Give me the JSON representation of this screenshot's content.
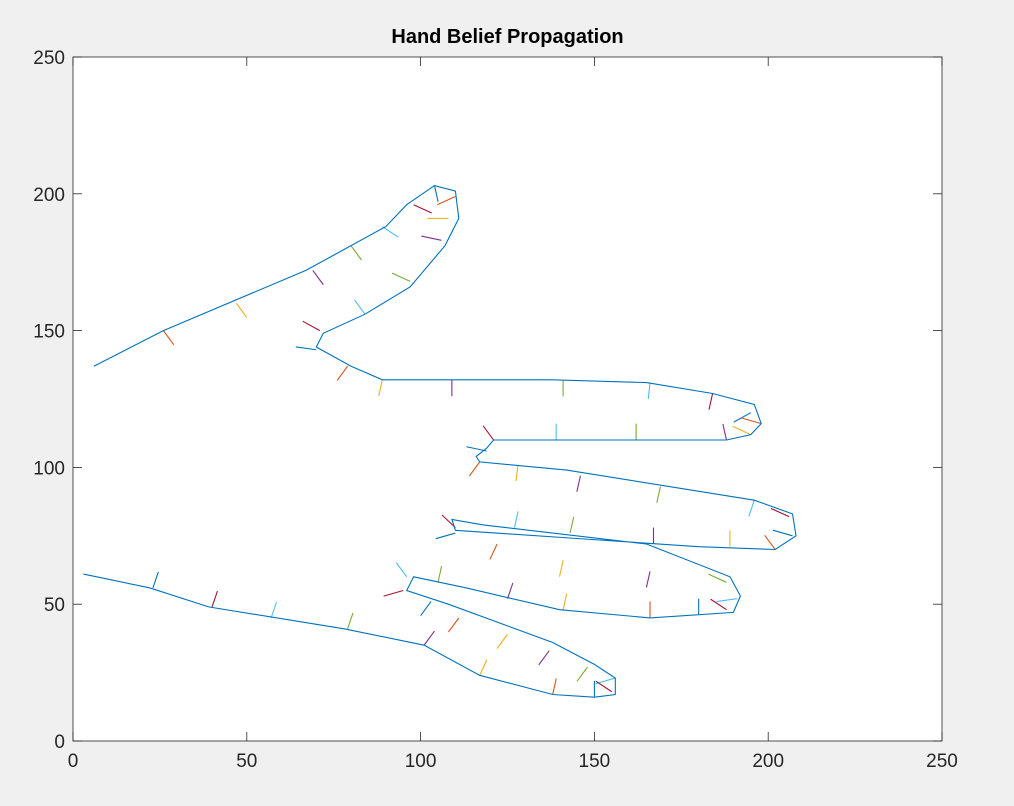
{
  "chart_data": {
    "type": "line",
    "title": "Hand Belief Propagation",
    "xlabel": "",
    "ylabel": "",
    "xlim": [
      0,
      250
    ],
    "ylim": [
      0,
      250
    ],
    "xticks": [
      "0",
      "50",
      "100",
      "150",
      "200",
      "250"
    ],
    "yticks": [
      "0",
      "50",
      "100",
      "150",
      "200",
      "250"
    ],
    "xtick_values": [
      0,
      50,
      100,
      150,
      200,
      250
    ],
    "ytick_values": [
      0,
      50,
      100,
      150,
      200,
      250
    ],
    "grid": false,
    "legend": "none",
    "colors": {
      "outline": "#0072bd",
      "background": "#f0f0f0",
      "axes_background": "#ffffff",
      "palette": [
        "#0072bd",
        "#d95319",
        "#edb120",
        "#7e2f8e",
        "#77ac30",
        "#4dbeee",
        "#a2142f"
      ]
    },
    "outline": [
      [
        6,
        137
      ],
      [
        26,
        150
      ],
      [
        67,
        172
      ],
      [
        90,
        188
      ],
      [
        96,
        196
      ],
      [
        104,
        203
      ],
      [
        110,
        201
      ],
      [
        111,
        191
      ],
      [
        107,
        181
      ],
      [
        97,
        166
      ],
      [
        84,
        156
      ],
      [
        72,
        149
      ],
      [
        70,
        144
      ],
      [
        80,
        137
      ],
      [
        89,
        132
      ],
      [
        138,
        132
      ],
      [
        165,
        131
      ],
      [
        184,
        127
      ],
      [
        196,
        123
      ],
      [
        198,
        116
      ],
      [
        195,
        112
      ],
      [
        188,
        110
      ],
      [
        139,
        110
      ],
      [
        121,
        110
      ],
      [
        119,
        107
      ],
      [
        116,
        104
      ],
      [
        117,
        102
      ],
      [
        142,
        99
      ],
      [
        196,
        88
      ],
      [
        207,
        83
      ],
      [
        208,
        75
      ],
      [
        202,
        70
      ],
      [
        180,
        71
      ],
      [
        145,
        74
      ],
      [
        110,
        77
      ],
      [
        109,
        81
      ],
      [
        118,
        79
      ],
      [
        165,
        72
      ],
      [
        189,
        60
      ],
      [
        192,
        53
      ],
      [
        190,
        47
      ],
      [
        166,
        45
      ],
      [
        140,
        48
      ],
      [
        113,
        56
      ],
      [
        98,
        60
      ],
      [
        96,
        55
      ],
      [
        108,
        50
      ],
      [
        138,
        36
      ],
      [
        150,
        28
      ],
      [
        156,
        23
      ],
      [
        156,
        17
      ],
      [
        150,
        16
      ],
      [
        138,
        17
      ],
      [
        117,
        24
      ],
      [
        101,
        35
      ],
      [
        78,
        41
      ],
      [
        39,
        49
      ],
      [
        22,
        56
      ],
      [
        3,
        61
      ]
    ],
    "normals": [
      {
        "x": 26,
        "y": 150,
        "angle": -60,
        "len": 6
      },
      {
        "x": 47,
        "y": 160,
        "angle": -60,
        "len": 6
      },
      {
        "x": 69,
        "y": 172,
        "angle": -60,
        "len": 6
      },
      {
        "x": 80,
        "y": 181,
        "angle": -60,
        "len": 6
      },
      {
        "x": 89,
        "y": 188,
        "angle": -40,
        "len": 6
      },
      {
        "x": 98,
        "y": 196,
        "angle": -30,
        "len": 6
      },
      {
        "x": 104,
        "y": 203,
        "angle": -80,
        "len": 6
      },
      {
        "x": 110,
        "y": 199,
        "angle": -150,
        "len": 6
      },
      {
        "x": 108,
        "y": 191,
        "angle": 180,
        "len": 6
      },
      {
        "x": 106,
        "y": 183,
        "angle": 165,
        "len": 6
      },
      {
        "x": 97,
        "y": 168,
        "angle": 150,
        "len": 6
      },
      {
        "x": 84,
        "y": 156,
        "angle": 120,
        "len": 6
      },
      {
        "x": 71,
        "y": 150,
        "angle": 145,
        "len": 6
      },
      {
        "x": 70,
        "y": 143,
        "angle": 170,
        "len": 6
      },
      {
        "x": 79,
        "y": 137,
        "angle": -120,
        "len": 6
      },
      {
        "x": 89,
        "y": 132,
        "angle": -100,
        "len": 6
      },
      {
        "x": 109,
        "y": 132,
        "angle": -90,
        "len": 6
      },
      {
        "x": 141,
        "y": 132,
        "angle": -90,
        "len": 6
      },
      {
        "x": 166,
        "y": 131,
        "angle": -95,
        "len": 6
      },
      {
        "x": 184,
        "y": 127,
        "angle": -100,
        "len": 6
      },
      {
        "x": 195,
        "y": 120,
        "angle": -145,
        "len": 6
      },
      {
        "x": 198,
        "y": 116,
        "angle": 160,
        "len": 6
      },
      {
        "x": 195,
        "y": 112,
        "angle": 150,
        "len": 6
      },
      {
        "x": 188,
        "y": 110,
        "angle": 100,
        "len": 6
      },
      {
        "x": 162,
        "y": 110,
        "angle": 90,
        "len": 6
      },
      {
        "x": 139,
        "y": 110,
        "angle": 90,
        "len": 6
      },
      {
        "x": 121,
        "y": 110,
        "angle": 120,
        "len": 6
      },
      {
        "x": 119,
        "y": 106,
        "angle": 165,
        "len": 6
      },
      {
        "x": 117,
        "y": 102,
        "angle": -120,
        "len": 6
      },
      {
        "x": 128,
        "y": 101,
        "angle": -95,
        "len": 6
      },
      {
        "x": 146,
        "y": 97,
        "angle": -100,
        "len": 6
      },
      {
        "x": 169,
        "y": 93,
        "angle": -100,
        "len": 6
      },
      {
        "x": 196,
        "y": 88,
        "angle": -105,
        "len": 6
      },
      {
        "x": 206,
        "y": 82,
        "angle": 150,
        "len": 6
      },
      {
        "x": 207,
        "y": 75,
        "angle": 160,
        "len": 6
      },
      {
        "x": 202,
        "y": 70,
        "angle": 120,
        "len": 6
      },
      {
        "x": 189,
        "y": 71,
        "angle": 90,
        "len": 6
      },
      {
        "x": 167,
        "y": 72,
        "angle": 90,
        "len": 6
      },
      {
        "x": 143,
        "y": 76,
        "angle": 80,
        "len": 6
      },
      {
        "x": 127,
        "y": 78,
        "angle": 80,
        "len": 6
      },
      {
        "x": 110,
        "y": 78,
        "angle": 130,
        "len": 6
      },
      {
        "x": 110,
        "y": 76,
        "angle": -160,
        "len": 6
      },
      {
        "x": 122,
        "y": 72,
        "angle": -110,
        "len": 6
      },
      {
        "x": 141,
        "y": 66,
        "angle": -100,
        "len": 6
      },
      {
        "x": 166,
        "y": 62,
        "angle": -100,
        "len": 6
      },
      {
        "x": 188,
        "y": 58,
        "angle": 150,
        "len": 6
      },
      {
        "x": 191,
        "y": 52,
        "angle": -170,
        "len": 6
      },
      {
        "x": 188,
        "y": 48,
        "angle": 140,
        "len": 6
      },
      {
        "x": 180,
        "y": 46,
        "angle": 90,
        "len": 6
      },
      {
        "x": 166,
        "y": 45,
        "angle": 90,
        "len": 6
      },
      {
        "x": 141,
        "y": 48,
        "angle": 80,
        "len": 6
      },
      {
        "x": 125,
        "y": 52,
        "angle": 75,
        "len": 6
      },
      {
        "x": 105,
        "y": 58,
        "angle": 80,
        "len": 6
      },
      {
        "x": 96,
        "y": 60,
        "angle": 120,
        "len": 6
      },
      {
        "x": 95,
        "y": 55,
        "angle": -160,
        "len": 6
      },
      {
        "x": 103,
        "y": 51,
        "angle": -120,
        "len": 6
      },
      {
        "x": 111,
        "y": 45,
        "angle": -120,
        "len": 6
      },
      {
        "x": 125,
        "y": 39,
        "angle": -120,
        "len": 6
      },
      {
        "x": 137,
        "y": 33,
        "angle": -120,
        "len": 6
      },
      {
        "x": 148,
        "y": 27,
        "angle": -120,
        "len": 6
      },
      {
        "x": 156,
        "y": 23,
        "angle": -160,
        "len": 6
      },
      {
        "x": 155,
        "y": 18,
        "angle": 140,
        "len": 6
      },
      {
        "x": 150,
        "y": 16,
        "angle": 90,
        "len": 6
      },
      {
        "x": 138,
        "y": 17,
        "angle": 80,
        "len": 6
      },
      {
        "x": 117,
        "y": 24,
        "angle": 70,
        "len": 6
      },
      {
        "x": 101,
        "y": 35,
        "angle": 60,
        "len": 6
      },
      {
        "x": 79,
        "y": 41,
        "angle": 75,
        "len": 6
      },
      {
        "x": 57,
        "y": 45,
        "angle": 75,
        "len": 6
      },
      {
        "x": 40,
        "y": 49,
        "angle": 75,
        "len": 6
      },
      {
        "x": 23,
        "y": 56,
        "angle": 75,
        "len": 6
      }
    ]
  }
}
